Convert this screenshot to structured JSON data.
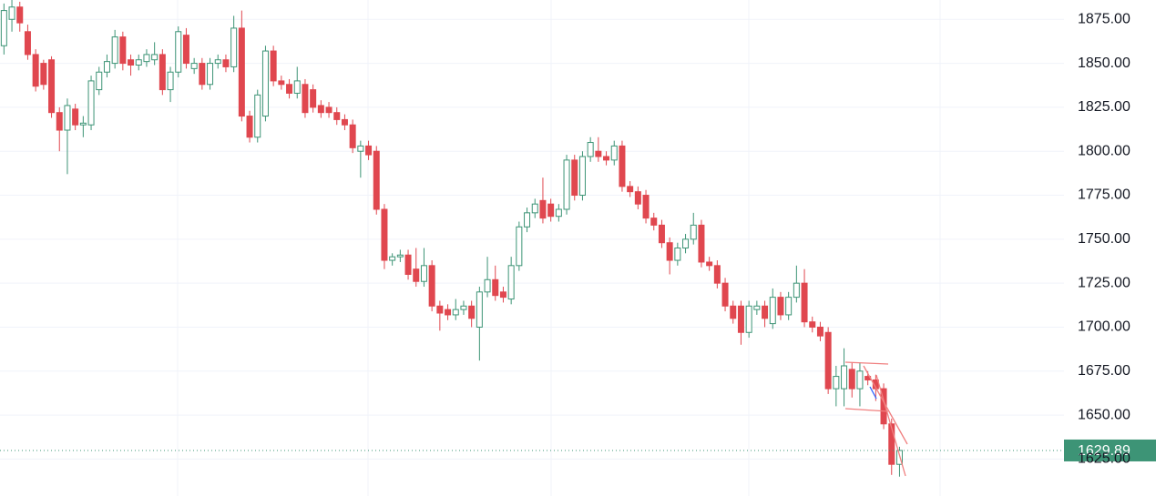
{
  "chart_data": {
    "type": "candlestick",
    "open": [
      1860,
      1875,
      1882,
      1868,
      1855,
      1850,
      1852,
      1822,
      1812,
      1824,
      1815,
      1815,
      1835,
      1845,
      1850,
      1865,
      1852,
      1849,
      1851,
      1852,
      1855,
      1835,
      1845,
      1866,
      1847,
      1850,
      1838,
      1850,
      1852,
      1848,
      1870,
      1820,
      1808,
      1820,
      1857,
      1840,
      1838,
      1833,
      1838,
      1835,
      1826,
      1825,
      1822,
      1818,
      1815,
      1800,
      1803,
      1800,
      1767,
      1738,
      1740,
      1741,
      1733,
      1726,
      1735,
      1712,
      1710,
      1707,
      1710,
      1712,
      1700,
      1720,
      1727,
      1720,
      1716,
      1735,
      1757,
      1765,
      1772,
      1770,
      1763,
      1767,
      1795,
      1775,
      1797,
      1800,
      1797,
      1795,
      1803,
      1780,
      1777,
      1775,
      1762,
      1758,
      1748,
      1738,
      1745,
      1750,
      1758,
      1737,
      1735,
      1725,
      1712,
      1712,
      1697,
      1710,
      1712,
      1702,
      1717,
      1707,
      1717,
      1725,
      1703,
      1700,
      1697,
      1665,
      1665,
      1676,
      1665,
      1672,
      1670,
      1665,
      1645,
      1622
    ],
    "high": [
      1884,
      1886,
      1885,
      1872,
      1858,
      1852,
      1854,
      1825,
      1830,
      1827,
      1820,
      1843,
      1848,
      1855,
      1869,
      1868,
      1855,
      1855,
      1858,
      1862,
      1858,
      1848,
      1871,
      1870,
      1853,
      1853,
      1853,
      1855,
      1855,
      1877,
      1880,
      1823,
      1835,
      1860,
      1860,
      1843,
      1841,
      1848,
      1841,
      1838,
      1829,
      1828,
      1825,
      1821,
      1818,
      1806,
      1806,
      1803,
      1770,
      1742,
      1744,
      1744,
      1745,
      1745,
      1738,
      1715,
      1713,
      1716,
      1715,
      1715,
      1723,
      1740,
      1735,
      1723,
      1740,
      1760,
      1768,
      1773,
      1785,
      1773,
      1770,
      1798,
      1798,
      1800,
      1808,
      1808,
      1800,
      1806,
      1806,
      1783,
      1780,
      1778,
      1765,
      1761,
      1751,
      1748,
      1753,
      1765,
      1761,
      1740,
      1738,
      1728,
      1715,
      1715,
      1715,
      1715,
      1715,
      1722,
      1720,
      1720,
      1735,
      1733,
      1706,
      1703,
      1700,
      1678,
      1688,
      1680,
      1680,
      1675,
      1673,
      1668,
      1648,
      1632
    ],
    "low": [
      1855,
      1868,
      1868,
      1852,
      1834,
      1835,
      1819,
      1800,
      1787,
      1812,
      1808,
      1812,
      1832,
      1842,
      1847,
      1846,
      1843,
      1846,
      1848,
      1849,
      1832,
      1828,
      1842,
      1847,
      1844,
      1835,
      1835,
      1847,
      1845,
      1845,
      1817,
      1805,
      1805,
      1817,
      1837,
      1835,
      1830,
      1830,
      1819,
      1822,
      1819,
      1819,
      1815,
      1812,
      1799,
      1785,
      1795,
      1764,
      1733,
      1735,
      1737,
      1727,
      1723,
      1723,
      1709,
      1698,
      1704,
      1704,
      1707,
      1700,
      1681,
      1717,
      1715,
      1714,
      1713,
      1732,
      1754,
      1762,
      1759,
      1760,
      1760,
      1764,
      1772,
      1772,
      1794,
      1794,
      1792,
      1792,
      1777,
      1774,
      1767,
      1759,
      1755,
      1745,
      1730,
      1735,
      1742,
      1747,
      1734,
      1732,
      1722,
      1709,
      1702,
      1690,
      1694,
      1707,
      1700,
      1699,
      1704,
      1704,
      1714,
      1700,
      1697,
      1692,
      1662,
      1655,
      1655,
      1660,
      1655,
      1667,
      1658,
      1642,
      1616,
      1615
    ],
    "close": [
      1880,
      1882,
      1873,
      1855,
      1837,
      1838,
      1822,
      1812,
      1826,
      1815,
      1816,
      1840,
      1845,
      1851,
      1865,
      1850,
      1849,
      1852,
      1855,
      1855,
      1835,
      1845,
      1868,
      1850,
      1850,
      1838,
      1850,
      1852,
      1848,
      1870,
      1820,
      1808,
      1832,
      1857,
      1840,
      1838,
      1833,
      1840,
      1822,
      1825,
      1822,
      1822,
      1818,
      1815,
      1802,
      1803,
      1798,
      1767,
      1738,
      1740,
      1741,
      1730,
      1726,
      1735,
      1712,
      1708,
      1707,
      1710,
      1712,
      1705,
      1720,
      1727,
      1718,
      1717,
      1735,
      1757,
      1765,
      1770,
      1762,
      1763,
      1767,
      1795,
      1775,
      1797,
      1805,
      1797,
      1795,
      1803,
      1780,
      1777,
      1770,
      1762,
      1758,
      1748,
      1738,
      1745,
      1750,
      1758,
      1737,
      1735,
      1725,
      1712,
      1705,
      1697,
      1712,
      1712,
      1705,
      1717,
      1707,
      1717,
      1725,
      1703,
      1700,
      1695,
      1665,
      1672,
      1678,
      1665,
      1675,
      1670,
      1665,
      1645,
      1622,
      1629.89
    ],
    "up_color": "#3d9476",
    "down_color": "#e0474f",
    "ylim": [
      1604,
      1886
    ],
    "yticks": [
      {
        "value": 1625,
        "label": "1625.00"
      },
      {
        "value": 1650,
        "label": "1650.00"
      },
      {
        "value": 1675,
        "label": "1675.00"
      },
      {
        "value": 1700,
        "label": "1700.00"
      },
      {
        "value": 1725,
        "label": "1725.00"
      },
      {
        "value": 1750,
        "label": "1750.00"
      },
      {
        "value": 1775,
        "label": "1775.00"
      },
      {
        "value": 1800,
        "label": "1800.00"
      },
      {
        "value": 1825,
        "label": "1825.00"
      },
      {
        "value": 1850,
        "label": "1850.00"
      },
      {
        "value": 1875,
        "label": "1875.00"
      }
    ],
    "grid": true
  }
}
